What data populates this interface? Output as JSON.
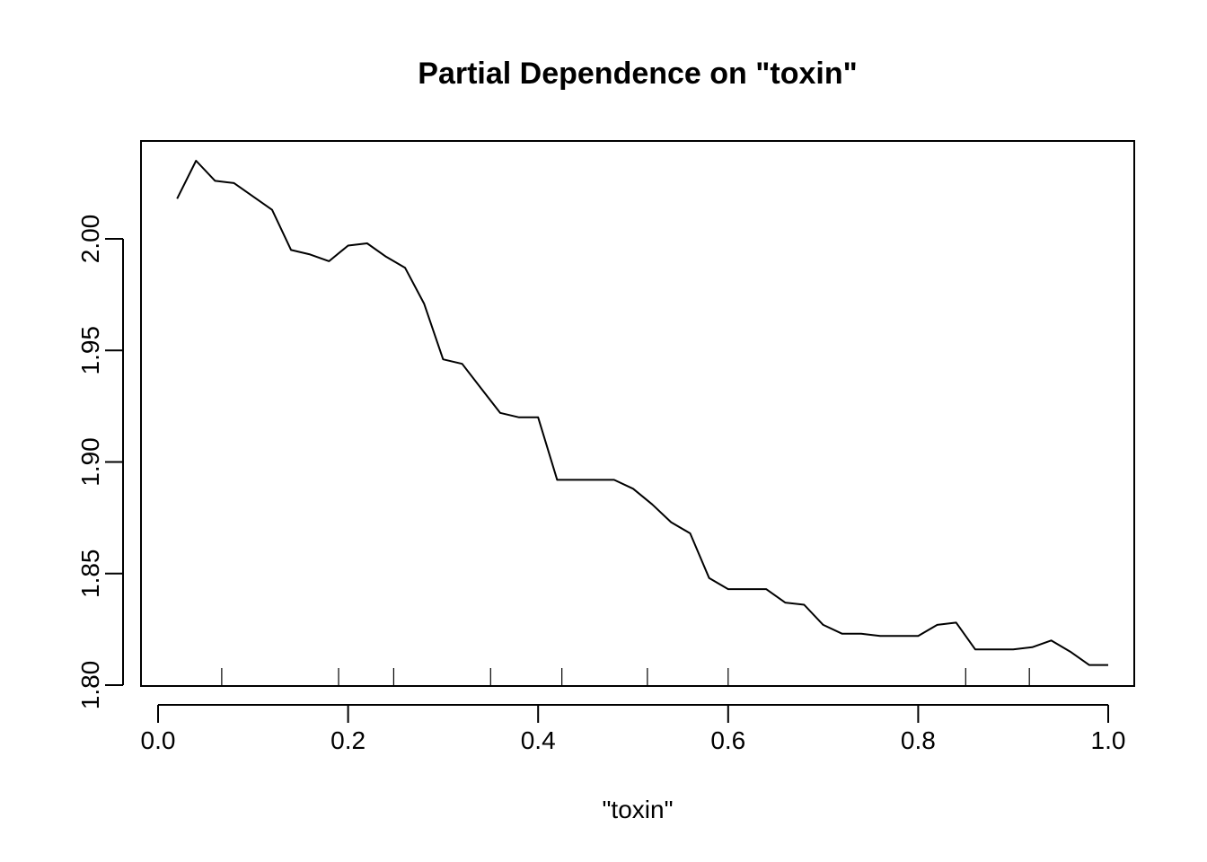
{
  "chart_data": {
    "type": "line",
    "title": "Partial Dependence on \"toxin\"",
    "xlabel": "\"toxin\"",
    "ylabel": "",
    "xlim": [
      0.0,
      1.0
    ],
    "ylim": [
      1.8,
      2.03
    ],
    "x_ticks": [
      "0.0",
      "0.2",
      "0.4",
      "0.6",
      "0.8",
      "1.0"
    ],
    "y_ticks": [
      "1.80",
      "1.85",
      "1.90",
      "1.95",
      "2.00"
    ],
    "rug": [
      0.067,
      0.19,
      0.248,
      0.35,
      0.425,
      0.515,
      0.6,
      0.85,
      0.917
    ],
    "grid": false,
    "line_color": "#000000",
    "series": [
      {
        "x": [
          0.02,
          0.04,
          0.06,
          0.08,
          0.1,
          0.12,
          0.14,
          0.16,
          0.18,
          0.2,
          0.22,
          0.24,
          0.26,
          0.28,
          0.3,
          0.32,
          0.34,
          0.36,
          0.38,
          0.4,
          0.42,
          0.44,
          0.46,
          0.48,
          0.5,
          0.52,
          0.54,
          0.56,
          0.58,
          0.6,
          0.62,
          0.64,
          0.66,
          0.68,
          0.7,
          0.72,
          0.74,
          0.76,
          0.78,
          0.8,
          0.82,
          0.84,
          0.86,
          0.88,
          0.9,
          0.92,
          0.94,
          0.96,
          0.98,
          1.0
        ],
        "values": [
          2.018,
          2.035,
          2.026,
          2.025,
          2.019,
          2.013,
          1.995,
          1.993,
          1.99,
          1.997,
          1.998,
          1.992,
          1.987,
          1.971,
          1.946,
          1.944,
          1.933,
          1.922,
          1.92,
          1.92,
          1.892,
          1.892,
          1.892,
          1.892,
          1.888,
          1.881,
          1.873,
          1.868,
          1.848,
          1.843,
          1.843,
          1.843,
          1.837,
          1.836,
          1.827,
          1.823,
          1.823,
          1.822,
          1.822,
          1.822,
          1.827,
          1.828,
          1.816,
          1.816,
          1.816,
          1.817,
          1.82,
          1.815,
          1.809,
          1.809
        ]
      }
    ]
  }
}
